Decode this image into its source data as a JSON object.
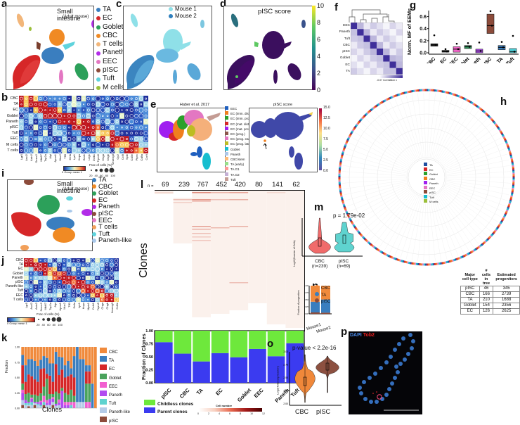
{
  "panels": {
    "a": {
      "label": "a",
      "title": "Small intestine",
      "subtitle": "(Adult mouse)",
      "legend": [
        {
          "name": "TA",
          "color": "#3a7ebf"
        },
        {
          "name": "EC",
          "color": "#d62728"
        },
        {
          "name": "Goblet",
          "color": "#2ca05a"
        },
        {
          "name": "CBC",
          "color": "#f08a24"
        },
        {
          "name": "T cells",
          "color": "#f2b67a"
        },
        {
          "name": "Paneth",
          "color": "#b22ce8"
        },
        {
          "name": "EEC",
          "color": "#e377c2"
        },
        {
          "name": "pISC",
          "color": "#8c4b3a"
        },
        {
          "name": "Tuft",
          "color": "#5fd3dc"
        },
        {
          "name": "M cells",
          "color": "#9bbf3a"
        }
      ]
    },
    "b": {
      "label": "b",
      "rows": [
        "CBC",
        "TA",
        "EC",
        "Goblet",
        "Paneth",
        "pISC",
        "Tuft",
        "EEC",
        "M cells",
        "T cells"
      ],
      "genes": [
        "Lgr5",
        "Ascl2",
        "Axin2",
        "Smoc2",
        "Mki67",
        "Top2a",
        "Alpi",
        "Apoa1",
        "Muc2",
        "Tff3",
        "Defa",
        "Lyz1",
        "Hopx",
        "Bmi1",
        "Lrig1",
        "Dclk1",
        "Trpm5",
        "Chga",
        "Chgb",
        "Neurog3",
        "Gp2",
        "Ccl9",
        "Spib",
        "Cd3e",
        "Ptprc",
        "Cd8a",
        "Ccr9"
      ],
      "colorbar_label": "0 Group mean 1",
      "size_legend_title": "Frac of cells (%)",
      "size_legend_values": [
        "20",
        "40",
        "60",
        "80",
        "100"
      ]
    },
    "c": {
      "label": "c",
      "legend": [
        {
          "name": "Mouse 1",
          "color": "#8fe0e8"
        },
        {
          "name": "Mouse 2",
          "color": "#2f7fbd"
        }
      ]
    },
    "d": {
      "label": "d",
      "title": "pISC score",
      "colorbar_ticks": [
        "10",
        "8",
        "6",
        "4",
        "2",
        "0"
      ]
    },
    "e": {
      "label": "e",
      "left_title": "Haber et al. 2017",
      "right_title": "pISC score",
      "legend": [
        {
          "name": "EEC",
          "color": "#1f5fbf"
        },
        {
          "name": "EC (imm. dist.)",
          "color": "#f07f1e"
        },
        {
          "name": "EC (imm. prox.)",
          "color": "#2ca02c"
        },
        {
          "name": "EC (mat. dist.)",
          "color": "#d62728"
        },
        {
          "name": "EC (mat. prox.)",
          "color": "#a020f0"
        },
        {
          "name": "EC (prog.)",
          "color": "#8c564b"
        },
        {
          "name": "EC (prog. early)",
          "color": "#e377c2"
        },
        {
          "name": "EC (prog. late)",
          "color": "#bcbd22"
        },
        {
          "name": "Goblet",
          "color": "#17becf"
        },
        {
          "name": "Paneth",
          "color": "#aec7e8"
        },
        {
          "name": "CBC/stem",
          "color": "#ffbb78"
        },
        {
          "name": "TA (early)",
          "color": "#98df8a"
        },
        {
          "name": "TA.G1",
          "color": "#ff9896"
        },
        {
          "name": "TA.G2",
          "color": "#c5b0d5"
        },
        {
          "name": "Tuft",
          "color": "#c49c94"
        }
      ],
      "colorbar_ticks": [
        "15.0",
        "12.5",
        "10.0",
        "7.5",
        "5.0",
        "2.5",
        "0.0"
      ]
    },
    "f": {
      "label": "f",
      "rows": [
        "EEC",
        "Paneth",
        "Tuft",
        "CBC",
        "pISC",
        "Goblet",
        "EC",
        "TA"
      ],
      "colorbar_label": "-0.07 Correlation 1"
    },
    "g": {
      "label": "g",
      "ylabel": "Norm. MF of EEMs",
      "yticks": [
        "0.0",
        "0.2",
        "0.4",
        "0.6"
      ]
    },
    "h": {
      "label": "h",
      "legend": [
        {
          "name": "TA",
          "color": "#1f4fa0"
        },
        {
          "name": "EC",
          "color": "#d62728"
        },
        {
          "name": "Goblet",
          "color": "#2ca02c"
        },
        {
          "name": "CBC",
          "color": "#f07f1e"
        },
        {
          "name": "Paneth",
          "color": "#a020f0"
        },
        {
          "name": "EEC",
          "color": "#e377c2"
        },
        {
          "name": "pISC",
          "color": "#8c4b3a"
        },
        {
          "name": "Tuft",
          "color": "#17becf"
        },
        {
          "name": "M cells",
          "color": "#9bbf3a"
        }
      ],
      "table": {
        "headers": [
          "Major cell type",
          "# cells in tree",
          "Estimated progenitors"
        ],
        "rows": [
          [
            "pISC",
            "46",
            "345"
          ],
          [
            "CBC",
            "166",
            "2739"
          ],
          [
            "TA",
            "210",
            "1688"
          ],
          [
            "Goblet",
            "154",
            "2356"
          ],
          [
            "EC",
            "126",
            "2625"
          ]
        ]
      }
    },
    "i": {
      "label": "i",
      "title": "Small intestine",
      "subtitle": "(Adult mouse)",
      "legend": [
        {
          "name": "TA",
          "color": "#3a7ebf"
        },
        {
          "name": "CBC",
          "color": "#f08a24"
        },
        {
          "name": "Goblet",
          "color": "#2ca05a"
        },
        {
          "name": "EC",
          "color": "#d62728"
        },
        {
          "name": "Paneth",
          "color": "#b22ce8"
        },
        {
          "name": "pISC",
          "color": "#8c4b3a"
        },
        {
          "name": "EEC",
          "color": "#e377c2"
        },
        {
          "name": "T cells",
          "color": "#f2a05a"
        },
        {
          "name": "Tuft",
          "color": "#5fd3dc"
        },
        {
          "name": "Paneth-like",
          "color": "#a9c8ea"
        }
      ]
    },
    "j": {
      "label": "j",
      "rows": [
        "CBC",
        "TA",
        "EC",
        "Goblet",
        "Paneth",
        "pISC",
        "Paneth-like",
        "Tuft",
        "EEC",
        "T cells"
      ],
      "genes": [
        "Lgr5",
        "Ascl2",
        "Axin2",
        "Smoc2",
        "Mki67",
        "Top2a",
        "Alpi",
        "Apoa1",
        "Muc2",
        "Tff3",
        "Defa",
        "Lyz1",
        "Hopx",
        "Mptx1",
        "Dclk1",
        "Trpm5",
        "Chga",
        "Chgb",
        "Neurog3",
        "Cd3e"
      ],
      "colorbar_label": "0 Group mean 1",
      "size_legend_title": "Frac of cells (%)",
      "size_legend_values": [
        "20",
        "40",
        "60",
        "80",
        "100"
      ]
    },
    "k": {
      "label": "k",
      "ylabel": "Fraction",
      "xlabel": "Clones",
      "yticks": [
        "0.00",
        "0.25",
        "0.50",
        "0.75",
        "1.00"
      ],
      "legend": [
        {
          "name": "CBC",
          "color": "#f08a3c"
        },
        {
          "name": "TA",
          "color": "#3a7ebf"
        },
        {
          "name": "EC",
          "color": "#d62728"
        },
        {
          "name": "Goblet",
          "color": "#4aa35c"
        },
        {
          "name": "EEC",
          "color": "#f25fd0"
        },
        {
          "name": "Paneth",
          "color": "#b24cf0"
        },
        {
          "name": "Tuft",
          "color": "#5fd3cf"
        },
        {
          "name": "Paneth-like",
          "color": "#b5cce8"
        },
        {
          "name": "pISC",
          "color": "#8c4b3a"
        }
      ]
    },
    "l": {
      "label": "l",
      "n_prefix": "n =",
      "counts": [
        "69",
        "239",
        "767",
        "452",
        "420",
        "80",
        "141",
        "62"
      ],
      "ylabel_top": "Clones",
      "ylabel_bottom": "Fraction of Clones",
      "yticks": [
        "0.00",
        "0.25",
        "0.50",
        "0.75",
        "1.00"
      ],
      "categories": [
        "pISC",
        "CBC",
        "TA",
        "EC",
        "Goblet",
        "EEC",
        "Paneth",
        "Tuft"
      ],
      "legend": [
        {
          "name": "Childless clones",
          "color": "#6ee83c"
        },
        {
          "name": "Parent clones",
          "color": "#3b3bf0"
        }
      ],
      "colorbar_title": "Cell number",
      "colorbar_ticks": [
        "0",
        "2",
        "4",
        "6",
        "8",
        "10",
        "12"
      ]
    },
    "m": {
      "label": "m",
      "pvalue": "p = 1.79e-02",
      "ylabel": "Log10(Number of Cells)",
      "groups": [
        {
          "name": "CBC",
          "n": "(n=239)",
          "color": "#f06b6b"
        },
        {
          "name": "pISC",
          "n": "(n=69)",
          "color": "#5fd3cf"
        }
      ]
    },
    "n": {
      "label": "n",
      "ylabel": "Fraction of progenitors",
      "yticks": [
        "0.00",
        "0.25",
        "0.50",
        "0.75",
        "1.00"
      ],
      "categories": [
        "Mouse1",
        "Mouse2"
      ],
      "legend": [
        {
          "name": "CBC",
          "color": "#f08a3c"
        },
        {
          "name": "TA",
          "color": "#3a7ebf"
        },
        {
          "name": "pISC",
          "color": "#8c4b3a"
        }
      ]
    },
    "o": {
      "label": "o",
      "pvalue": "p-value < 2.2e-16",
      "ylabel": "Log2(Tob2 expression)",
      "yticks": [
        "2.00",
        "2.25",
        "2.50",
        "2.75",
        "3.00"
      ],
      "groups": [
        {
          "name": "CBC",
          "color": "#f0883a"
        },
        {
          "name": "pISC",
          "color": "#8c5040"
        }
      ]
    },
    "p": {
      "label": "p",
      "stain1": "DAPI",
      "stain2": "Tob2"
    }
  },
  "chart_data": [
    {
      "panel": "g",
      "type": "box",
      "title": "",
      "xlabel": "",
      "ylabel": "Norm. MF of EEMs",
      "ylim": [
        0,
        0.7
      ],
      "categories": [
        "CBC",
        "EC",
        "EEC",
        "Goblet",
        "Paneth",
        "pISC",
        "TA",
        "Tuft"
      ],
      "colors": [
        "#222222",
        "#222222",
        "#f066c8",
        "#2e8b57",
        "#b24cf0",
        "#8c4b3a",
        "#3a7ebf",
        "#4fd1d9"
      ],
      "median": [
        0.13,
        0.02,
        0.06,
        0.1,
        0.03,
        0.45,
        0.09,
        0.02
      ],
      "q1": [
        0.11,
        0.01,
        0.01,
        0.07,
        0.0,
        0.32,
        0.05,
        0.0
      ],
      "q3": [
        0.15,
        0.04,
        0.1,
        0.12,
        0.06,
        0.64,
        0.12,
        0.07
      ],
      "max_point": [
        0.29,
        0.06,
        0.15,
        0.16,
        0.17,
        0.69,
        0.18,
        0.28
      ]
    },
    {
      "panel": "k",
      "type": "bar",
      "stacked": true,
      "xlabel": "Clones",
      "ylabel": "Fraction",
      "ylim": [
        0,
        1
      ],
      "series_order": [
        "pISC",
        "Paneth-like",
        "Tuft",
        "Paneth",
        "EEC",
        "Goblet",
        "EC",
        "TA",
        "CBC"
      ],
      "n_clones": 25,
      "note": "stacked fractions per clone; approximate",
      "series": [
        {
          "name": "pISC",
          "values": [
            0.05,
            0,
            0.03,
            0,
            0.05,
            0,
            0,
            0.05,
            0,
            0,
            0.05,
            0,
            0,
            0,
            0,
            0,
            0,
            0,
            0,
            0,
            0,
            0,
            0,
            0,
            0
          ]
        },
        {
          "name": "Paneth-like",
          "values": [
            0.08,
            0.05,
            0.02,
            0.05,
            0.03,
            0.05,
            0.03,
            0,
            0.05,
            0.05,
            0.05,
            0.04,
            0.05,
            0,
            0,
            0,
            0,
            0,
            0.1,
            0.1,
            0.1,
            0,
            0,
            0,
            0
          ]
        },
        {
          "name": "Tuft",
          "values": [
            0,
            0.03,
            0.03,
            0.05,
            0,
            0.02,
            0.02,
            0.05,
            0,
            0,
            0,
            0,
            0,
            0,
            0,
            0,
            0.05,
            0,
            0,
            0,
            0,
            0,
            0,
            0,
            0
          ]
        },
        {
          "name": "Paneth",
          "values": [
            0.12,
            0.05,
            0.02,
            0.05,
            0.02,
            0.03,
            0.05,
            0,
            0.03,
            0.1,
            0.05,
            0.03,
            0.04,
            0.28,
            0.05,
            0.05,
            0,
            0,
            0,
            0,
            0,
            0,
            0,
            0,
            0
          ]
        },
        {
          "name": "EEC",
          "values": [
            0.05,
            0,
            0,
            0.02,
            0,
            0,
            0.02,
            0.1,
            0.05,
            0,
            0.03,
            0,
            0.05,
            0,
            0.05,
            0.05,
            0.05,
            0.1,
            0,
            0,
            0,
            0.1,
            0.1,
            0,
            0
          ]
        },
        {
          "name": "Goblet",
          "values": [
            0.1,
            0.1,
            0.15,
            0.05,
            0.12,
            0.1,
            0.12,
            0.15,
            0.35,
            0.08,
            0.05,
            0.2,
            0.1,
            0.05,
            0.15,
            0.12,
            0.2,
            0.1,
            0,
            0,
            0,
            0.3,
            0.3,
            0,
            0
          ]
        },
        {
          "name": "EC",
          "values": [
            0.3,
            0.2,
            0.3,
            0.3,
            0.25,
            0.23,
            0.4,
            0.3,
            0.08,
            0.3,
            0.2,
            0.45,
            0.3,
            0.3,
            0.25,
            0.3,
            0.25,
            0.3,
            0,
            0,
            0,
            0.2,
            0.2,
            0,
            0
          ]
        },
        {
          "name": "TA",
          "values": [
            0.17,
            0.27,
            0.25,
            0.28,
            0.3,
            0.26,
            0.15,
            0.2,
            0.26,
            0.2,
            0.3,
            0.2,
            0.3,
            0.2,
            0.2,
            0.25,
            0.1,
            0.35,
            0.9,
            0.7,
            0.7,
            0.1,
            0.1,
            0.4,
            0
          ]
        },
        {
          "name": "CBC",
          "values": [
            0.13,
            0.3,
            0.2,
            0.2,
            0.23,
            0.31,
            0.21,
            0.15,
            0.18,
            0.27,
            0.27,
            0.08,
            0.16,
            0.17,
            0.3,
            0.18,
            0.35,
            0.15,
            0,
            0.2,
            0.2,
            0.3,
            0.3,
            0.6,
            1.0
          ]
        }
      ]
    },
    {
      "panel": "l-bottom",
      "type": "bar",
      "stacked": true,
      "xlabel": "",
      "ylabel": "Fraction of Clones",
      "ylim": [
        0,
        1
      ],
      "categories": [
        "pISC",
        "CBC",
        "TA",
        "EC",
        "Goblet",
        "EEC",
        "Paneth",
        "Tuft"
      ],
      "series": [
        {
          "name": "Parent clones",
          "values": [
            0.78,
            0.56,
            0.41,
            0.57,
            0.49,
            0.65,
            0.51,
            0.76
          ]
        },
        {
          "name": "Childless clones",
          "values": [
            0.22,
            0.44,
            0.59,
            0.43,
            0.51,
            0.35,
            0.49,
            0.24
          ]
        }
      ]
    },
    {
      "panel": "n",
      "type": "bar",
      "stacked": true,
      "ylabel": "Fraction of progenitors",
      "ylim": [
        0,
        1
      ],
      "categories": [
        "Mouse1",
        "Mouse2"
      ],
      "series": [
        {
          "name": "pISC",
          "values": [
            0.05,
            0.04
          ]
        },
        {
          "name": "TA",
          "values": [
            0.38,
            0.47
          ]
        },
        {
          "name": "CBC",
          "values": [
            0.57,
            0.49
          ]
        }
      ]
    },
    {
      "panel": "m",
      "type": "violin",
      "ylabel": "Log10(Number of Cells)",
      "categories": [
        "CBC",
        "pISC"
      ],
      "median": [
        0.35,
        0.45
      ],
      "pvalue": "1.79e-02"
    },
    {
      "panel": "o",
      "type": "violin",
      "ylabel": "Log2(Tob2 expression)",
      "ylim": [
        2.0,
        3.0
      ],
      "categories": [
        "CBC",
        "pISC"
      ],
      "median": [
        2.42,
        2.7
      ],
      "pvalue": "< 2.2e-16"
    }
  ]
}
